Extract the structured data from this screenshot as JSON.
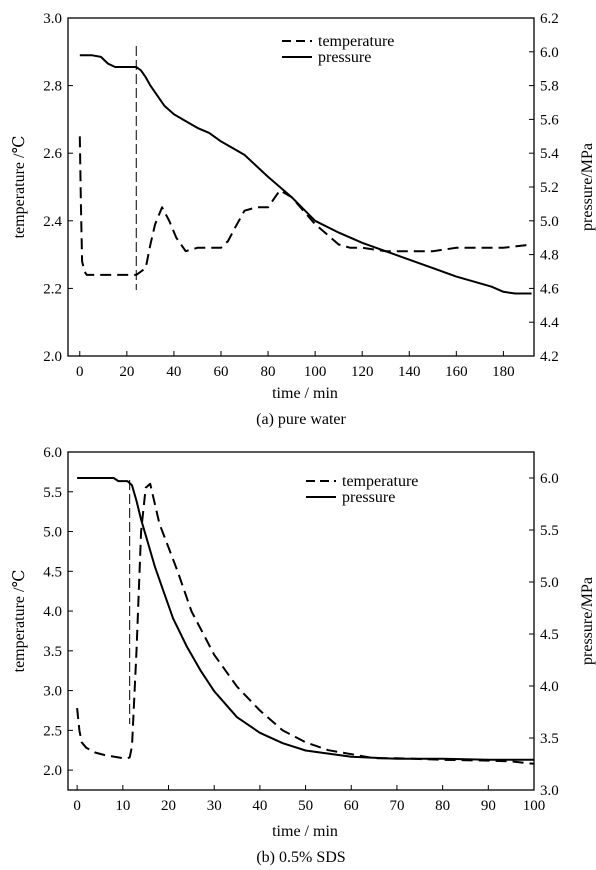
{
  "chart_data": [
    {
      "type": "line",
      "caption": "(a) pure water",
      "xlabel": "time / min",
      "ylabel_left": "temperature /℃",
      "ylabel_right": "pressure/MPa",
      "xlim": [
        -5,
        193
      ],
      "ylim_left": [
        2.0,
        3.0
      ],
      "ylim_right": [
        4.2,
        6.2
      ],
      "x_ticks": [
        0,
        20,
        40,
        60,
        80,
        100,
        120,
        140,
        160,
        180
      ],
      "y_left_ticks": [
        "2.0",
        "2.2",
        "2.4",
        "2.6",
        "2.8",
        "3.0"
      ],
      "y_right_ticks": [
        "4.2",
        "4.4",
        "4.6",
        "4.8",
        "5.0",
        "5.2",
        "5.4",
        "5.6",
        "5.8",
        "6.0",
        "6.2"
      ],
      "legend": {
        "position": "top-center",
        "entries": [
          "temperature",
          "pressure"
        ]
      },
      "marker_line_x": 24,
      "series": [
        {
          "name": "temperature",
          "axis": "left",
          "style": "dashed",
          "x": [
            0,
            0.5,
            1,
            2,
            3,
            5,
            10,
            15,
            20,
            24,
            26,
            28,
            30,
            32,
            35,
            38,
            41,
            45,
            50,
            55,
            60,
            63,
            66,
            70,
            75,
            80,
            85,
            90,
            95,
            100,
            105,
            110,
            115,
            120,
            130,
            140,
            150,
            160,
            170,
            180,
            192
          ],
          "y": [
            2.65,
            2.45,
            2.28,
            2.25,
            2.24,
            2.24,
            2.24,
            2.24,
            2.24,
            2.24,
            2.25,
            2.26,
            2.33,
            2.39,
            2.44,
            2.4,
            2.35,
            2.31,
            2.32,
            2.32,
            2.32,
            2.34,
            2.38,
            2.43,
            2.44,
            2.44,
            2.49,
            2.47,
            2.43,
            2.39,
            2.36,
            2.33,
            2.32,
            2.32,
            2.31,
            2.31,
            2.31,
            2.32,
            2.32,
            2.32,
            2.33
          ]
        },
        {
          "name": "pressure",
          "axis": "right",
          "style": "solid",
          "x": [
            0,
            5,
            9,
            12,
            15,
            20,
            24,
            26,
            28,
            30,
            33,
            36,
            40,
            45,
            50,
            55,
            60,
            70,
            80,
            90,
            100,
            110,
            120,
            130,
            140,
            150,
            160,
            170,
            175,
            180,
            185,
            192
          ],
          "y": [
            5.98,
            5.98,
            5.97,
            5.93,
            5.91,
            5.91,
            5.91,
            5.89,
            5.85,
            5.8,
            5.74,
            5.68,
            5.63,
            5.59,
            5.55,
            5.52,
            5.47,
            5.39,
            5.26,
            5.14,
            5.0,
            4.93,
            4.87,
            4.82,
            4.77,
            4.72,
            4.67,
            4.63,
            4.61,
            4.58,
            4.57,
            4.57
          ]
        }
      ]
    },
    {
      "type": "line",
      "caption": "(b) 0.5%  SDS",
      "xlabel": "time / min",
      "ylabel_left": "temperature /℃",
      "ylabel_right": "pressure/MPa",
      "xlim": [
        -2,
        100
      ],
      "ylim_left": [
        1.75,
        6.0
      ],
      "ylim_right": [
        3.0,
        6.25
      ],
      "x_ticks": [
        0,
        10,
        20,
        30,
        40,
        50,
        60,
        70,
        80,
        90,
        100
      ],
      "y_left_ticks": [
        "2.0",
        "2.5",
        "3.0",
        "3.5",
        "4.0",
        "4.5",
        "5.0",
        "5.5",
        "6.0"
      ],
      "y_right_ticks": [
        "3.0",
        "3.5",
        "4.0",
        "4.5",
        "5.0",
        "5.5",
        "6.0"
      ],
      "legend": {
        "position": "top-right",
        "entries": [
          "temperature",
          "pressure"
        ]
      },
      "marker_line_x": 11.5,
      "series": [
        {
          "name": "temperature",
          "axis": "left",
          "style": "dashed",
          "x": [
            0,
            0.5,
            1,
            2,
            4,
            6,
            8,
            10,
            11,
            11.5,
            12,
            13,
            14,
            15,
            16,
            17,
            18,
            20,
            22,
            25,
            30,
            35,
            40,
            45,
            50,
            55,
            60,
            65,
            70,
            80,
            90,
            95,
            100
          ],
          "y": [
            2.78,
            2.5,
            2.35,
            2.28,
            2.22,
            2.19,
            2.17,
            2.15,
            2.15,
            2.16,
            2.3,
            3.5,
            5.0,
            5.55,
            5.6,
            5.35,
            5.1,
            4.8,
            4.5,
            4.0,
            3.45,
            3.05,
            2.75,
            2.5,
            2.35,
            2.25,
            2.2,
            2.15,
            2.15,
            2.13,
            2.12,
            2.11,
            2.08
          ]
        },
        {
          "name": "pressure",
          "axis": "right",
          "style": "solid",
          "x": [
            0,
            5,
            8,
            9,
            11,
            12,
            13,
            14,
            15,
            17,
            19,
            21,
            24,
            27,
            30,
            35,
            40,
            45,
            50,
            55,
            60,
            70,
            80,
            90,
            100
          ],
          "y": [
            6.0,
            6.0,
            6.0,
            5.97,
            5.97,
            5.93,
            5.78,
            5.6,
            5.45,
            5.15,
            4.9,
            4.65,
            4.38,
            4.15,
            3.95,
            3.7,
            3.55,
            3.45,
            3.38,
            3.35,
            3.32,
            3.3,
            3.3,
            3.29,
            3.29
          ]
        }
      ]
    }
  ]
}
